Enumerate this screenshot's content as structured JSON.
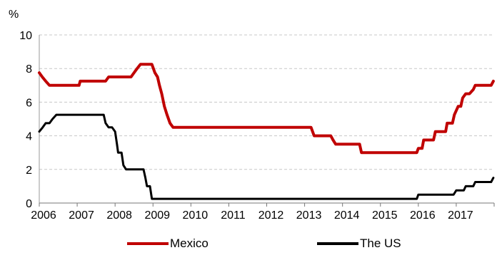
{
  "chart_data": {
    "type": "line",
    "ylabel": "%",
    "ylim": [
      0,
      10
    ],
    "yticks": [
      0,
      2,
      4,
      6,
      8,
      10
    ],
    "xlim": [
      2006,
      2018
    ],
    "xticks": [
      "2006",
      "2007",
      "2008",
      "2009",
      "2010",
      "2011",
      "2012",
      "2013",
      "2014",
      "2015",
      "2016",
      "2017"
    ],
    "grid": "horizontal-dashed",
    "legend": "bottom",
    "series": [
      {
        "name": "Mexico",
        "color": "#c00000",
        "points": [
          [
            2006.0,
            7.75
          ],
          [
            2006.08,
            7.5
          ],
          [
            2006.17,
            7.25
          ],
          [
            2006.27,
            7.0
          ],
          [
            2007.0,
            7.0
          ],
          [
            2007.05,
            7.0
          ],
          [
            2007.08,
            7.25
          ],
          [
            2007.75,
            7.25
          ],
          [
            2007.83,
            7.5
          ],
          [
            2008.42,
            7.5
          ],
          [
            2008.5,
            7.75
          ],
          [
            2008.58,
            8.0
          ],
          [
            2008.67,
            8.25
          ],
          [
            2008.97,
            8.25
          ],
          [
            2009.05,
            7.75
          ],
          [
            2009.12,
            7.5
          ],
          [
            2009.17,
            7.0
          ],
          [
            2009.23,
            6.5
          ],
          [
            2009.3,
            5.75
          ],
          [
            2009.37,
            5.25
          ],
          [
            2009.45,
            4.75
          ],
          [
            2009.53,
            4.5
          ],
          [
            2013.17,
            4.5
          ],
          [
            2013.25,
            4.0
          ],
          [
            2013.69,
            4.0
          ],
          [
            2013.75,
            3.75
          ],
          [
            2013.82,
            3.5
          ],
          [
            2014.45,
            3.5
          ],
          [
            2014.5,
            3.0
          ],
          [
            2015.96,
            3.0
          ],
          [
            2016.0,
            3.25
          ],
          [
            2016.1,
            3.25
          ],
          [
            2016.14,
            3.75
          ],
          [
            2016.4,
            3.75
          ],
          [
            2016.45,
            4.25
          ],
          [
            2016.72,
            4.25
          ],
          [
            2016.76,
            4.75
          ],
          [
            2016.9,
            4.75
          ],
          [
            2016.95,
            5.25
          ],
          [
            2017.05,
            5.75
          ],
          [
            2017.12,
            5.75
          ],
          [
            2017.17,
            6.25
          ],
          [
            2017.25,
            6.5
          ],
          [
            2017.35,
            6.5
          ],
          [
            2017.45,
            6.75
          ],
          [
            2017.5,
            7.0
          ],
          [
            2017.92,
            7.0
          ],
          [
            2017.98,
            7.25
          ]
        ]
      },
      {
        "name": "The US",
        "color": "#000000",
        "points": [
          [
            2006.0,
            4.25
          ],
          [
            2006.09,
            4.5
          ],
          [
            2006.17,
            4.75
          ],
          [
            2006.27,
            4.75
          ],
          [
            2006.35,
            5.0
          ],
          [
            2006.45,
            5.25
          ],
          [
            2007.7,
            5.25
          ],
          [
            2007.75,
            4.75
          ],
          [
            2007.83,
            4.5
          ],
          [
            2007.92,
            4.5
          ],
          [
            2008.0,
            4.25
          ],
          [
            2008.05,
            3.5
          ],
          [
            2008.08,
            3.0
          ],
          [
            2008.17,
            3.0
          ],
          [
            2008.22,
            2.25
          ],
          [
            2008.29,
            2.0
          ],
          [
            2008.75,
            2.0
          ],
          [
            2008.8,
            1.5
          ],
          [
            2008.84,
            1.0
          ],
          [
            2008.92,
            1.0
          ],
          [
            2008.97,
            0.25
          ],
          [
            2015.96,
            0.25
          ],
          [
            2016.0,
            0.5
          ],
          [
            2016.93,
            0.5
          ],
          [
            2017.0,
            0.75
          ],
          [
            2017.2,
            0.75
          ],
          [
            2017.25,
            1.0
          ],
          [
            2017.45,
            1.0
          ],
          [
            2017.5,
            1.25
          ],
          [
            2017.92,
            1.25
          ],
          [
            2017.98,
            1.5
          ]
        ]
      }
    ]
  }
}
